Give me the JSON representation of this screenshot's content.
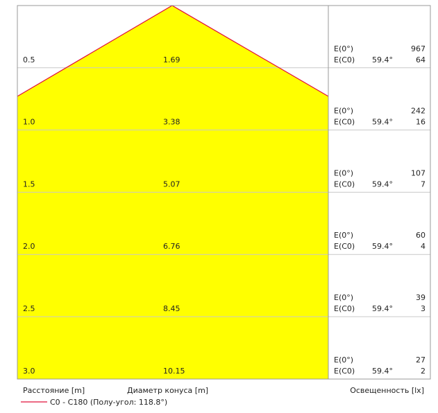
{
  "rows": [
    {
      "distance": "0.5",
      "diameter": "1.69",
      "e0_label": "E(0°)",
      "ec0_label": "E(C0)",
      "angle": "59.4°",
      "e0": "967",
      "ec0": "64"
    },
    {
      "distance": "1.0",
      "diameter": "3.38",
      "e0_label": "E(0°)",
      "ec0_label": "E(C0)",
      "angle": "59.4°",
      "e0": "242",
      "ec0": "16"
    },
    {
      "distance": "1.5",
      "diameter": "5.07",
      "e0_label": "E(0°)",
      "ec0_label": "E(C0)",
      "angle": "59.4°",
      "e0": "107",
      "ec0": "7"
    },
    {
      "distance": "2.0",
      "diameter": "6.76",
      "e0_label": "E(0°)",
      "ec0_label": "E(C0)",
      "angle": "59.4°",
      "e0": "60",
      "ec0": "4"
    },
    {
      "distance": "2.5",
      "diameter": "8.45",
      "e0_label": "E(0°)",
      "ec0_label": "E(C0)",
      "angle": "59.4°",
      "e0": "39",
      "ec0": "3"
    },
    {
      "distance": "3.0",
      "diameter": "10.15",
      "e0_label": "E(0°)",
      "ec0_label": "E(C0)",
      "angle": "59.4°",
      "e0": "27",
      "ec0": "2"
    }
  ],
  "legend": {
    "distance": "Расстояние [m]",
    "diameter": "Диаметр конуса [m]",
    "illuminance": "Освещенность [lx]",
    "curve": "C0 - C180 (Полу-угол: 118.8°)"
  }
}
